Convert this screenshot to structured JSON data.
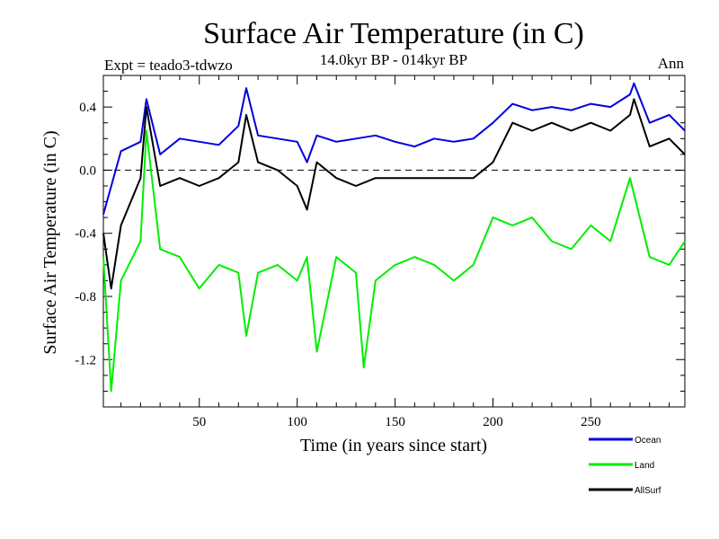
{
  "chart_data": {
    "type": "line",
    "title": "Surface Air Temperature (in C)",
    "subtitle": "14.0kyr BP - 014kyr BP",
    "experiment_label": "Expt = teado3-tdwzo",
    "period_label": "Ann",
    "xlabel": "Time (in years since start)",
    "ylabel": "Surface Air Temperature (in C)",
    "xlim": [
      1,
      298
    ],
    "ylim": [
      -1.5,
      0.6
    ],
    "x_ticks": [
      50,
      100,
      150,
      200,
      250
    ],
    "y_ticks": [
      0.4,
      0.0,
      -0.4,
      -0.8,
      -1.2
    ],
    "x_tick_labels": [
      "50",
      "100",
      "150",
      "200",
      "250"
    ],
    "y_tick_labels": [
      "0.4",
      "0.0",
      "-0.4",
      "-0.8",
      "-1.2"
    ],
    "reference_line": 0.0,
    "legend_position": "bottom-right outside",
    "series": [
      {
        "name": "Ocean",
        "color": "#0000dd",
        "x": [
          1,
          10,
          20,
          23,
          30,
          40,
          50,
          60,
          70,
          74,
          80,
          90,
          100,
          105,
          110,
          120,
          130,
          140,
          150,
          160,
          170,
          180,
          190,
          200,
          210,
          220,
          230,
          240,
          250,
          260,
          270,
          272,
          280,
          290,
          298
        ],
        "values": [
          -0.28,
          0.12,
          0.18,
          0.45,
          0.1,
          0.2,
          0.18,
          0.16,
          0.28,
          0.52,
          0.22,
          0.2,
          0.18,
          0.05,
          0.22,
          0.18,
          0.2,
          0.22,
          0.18,
          0.15,
          0.2,
          0.18,
          0.2,
          0.3,
          0.42,
          0.38,
          0.4,
          0.38,
          0.42,
          0.4,
          0.48,
          0.55,
          0.3,
          0.35,
          0.25
        ]
      },
      {
        "name": "Land",
        "color": "#00ee00",
        "x": [
          1,
          5,
          10,
          20,
          23,
          30,
          40,
          50,
          60,
          70,
          74,
          80,
          90,
          100,
          105,
          110,
          120,
          130,
          134,
          140,
          150,
          160,
          170,
          180,
          190,
          200,
          210,
          220,
          230,
          240,
          250,
          260,
          270,
          280,
          290,
          298
        ],
        "values": [
          -0.55,
          -1.4,
          -0.7,
          -0.45,
          0.25,
          -0.5,
          -0.55,
          -0.75,
          -0.6,
          -0.65,
          -1.05,
          -0.65,
          -0.6,
          -0.7,
          -0.55,
          -1.15,
          -0.55,
          -0.65,
          -1.25,
          -0.7,
          -0.6,
          -0.55,
          -0.6,
          -0.7,
          -0.6,
          -0.3,
          -0.35,
          -0.3,
          -0.45,
          -0.5,
          -0.35,
          -0.45,
          -0.05,
          -0.55,
          -0.6,
          -0.45
        ]
      },
      {
        "name": "AllSurf",
        "color": "#000000",
        "x": [
          1,
          5,
          10,
          20,
          23,
          30,
          40,
          50,
          60,
          70,
          74,
          80,
          90,
          100,
          105,
          110,
          120,
          130,
          140,
          150,
          160,
          170,
          180,
          190,
          200,
          210,
          220,
          230,
          240,
          250,
          260,
          270,
          272,
          280,
          290,
          298
        ],
        "values": [
          -0.4,
          -0.75,
          -0.35,
          -0.05,
          0.4,
          -0.1,
          -0.05,
          -0.1,
          -0.05,
          0.05,
          0.35,
          0.05,
          0.0,
          -0.1,
          -0.25,
          0.05,
          -0.05,
          -0.1,
          -0.05,
          -0.05,
          -0.05,
          -0.05,
          -0.05,
          -0.05,
          0.05,
          0.3,
          0.25,
          0.3,
          0.25,
          0.3,
          0.25,
          0.35,
          0.45,
          0.15,
          0.2,
          0.1
        ]
      }
    ]
  }
}
